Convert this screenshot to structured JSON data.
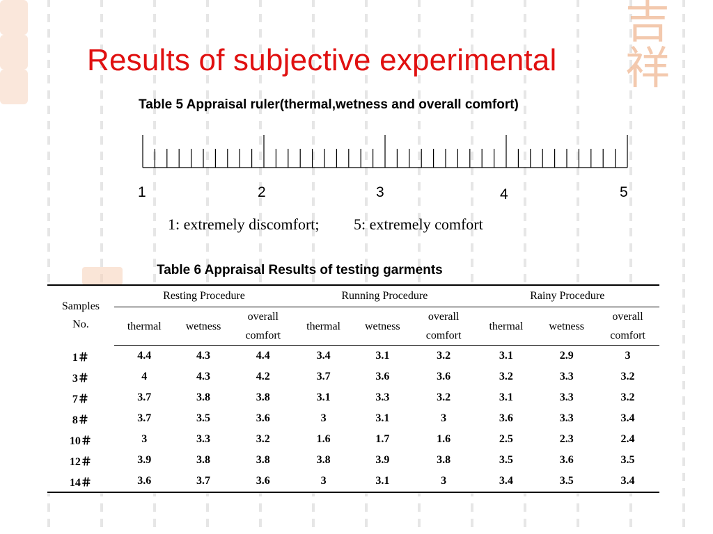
{
  "title": "Results of subjective experimental",
  "table5": {
    "caption": "Table 5 Appraisal ruler(thermal,wetness and overall comfort)",
    "scale_labels": [
      "1",
      "2",
      "3",
      "4",
      "5"
    ],
    "legend_left": "1: extremely discomfort;",
    "legend_right": "5: extremely comfort"
  },
  "table6": {
    "caption": "Table 6 Appraisal Results of testing garments",
    "samples_header": [
      "Samples",
      "No."
    ],
    "procedures": [
      "Resting Procedure",
      "Running Procedure",
      "Rainy Procedure"
    ],
    "sub_headers": {
      "thermal": "thermal",
      "wetness": "wetness",
      "overall_1": "overall",
      "overall_2": "comfort"
    },
    "rows": [
      {
        "sample": "1＃",
        "values": [
          "4.4",
          "4.3",
          "4.4",
          "3.4",
          "3.1",
          "3.2",
          "3.1",
          "2.9",
          "3"
        ]
      },
      {
        "sample": "3＃",
        "values": [
          "4",
          "4.3",
          "4.2",
          "3.7",
          "3.6",
          "3.6",
          "3.2",
          "3.3",
          "3.2"
        ]
      },
      {
        "sample": "7＃",
        "values": [
          "3.7",
          "3.8",
          "3.8",
          "3.1",
          "3.3",
          "3.2",
          "3.1",
          "3.3",
          "3.2"
        ]
      },
      {
        "sample": "8＃",
        "values": [
          "3.7",
          "3.5",
          "3.6",
          "3",
          "3.1",
          "3",
          "3.6",
          "3.3",
          "3.4"
        ]
      },
      {
        "sample": "10＃",
        "values": [
          "3",
          "3.3",
          "3.2",
          "1.6",
          "1.7",
          "1.6",
          "2.5",
          "2.3",
          "2.4"
        ]
      },
      {
        "sample": "12＃",
        "values": [
          "3.9",
          "3.8",
          "3.8",
          "3.8",
          "3.9",
          "3.8",
          "3.5",
          "3.6",
          "3.5"
        ]
      },
      {
        "sample": "14＃",
        "values": [
          "3.6",
          "3.7",
          "3.6",
          "3",
          "3.1",
          "3",
          "3.4",
          "3.5",
          "3.4"
        ]
      }
    ]
  },
  "colors": {
    "title": "#e01010",
    "seal": "#f0b894"
  },
  "decorations": {
    "seal": "decorative-seal-watermark"
  }
}
